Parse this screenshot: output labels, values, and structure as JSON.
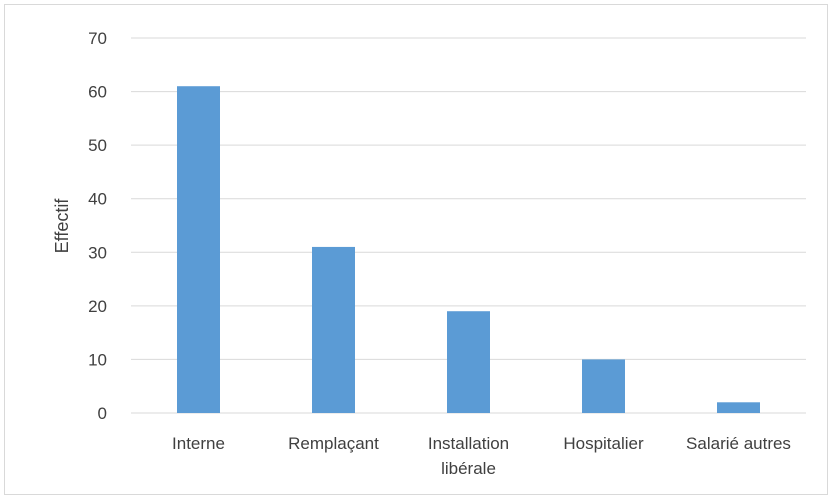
{
  "chart_data": {
    "type": "bar",
    "categories": [
      "Interne",
      "Remplaçant",
      "Installation libérale",
      "Hospitalier",
      "Salarié autres"
    ],
    "category_lines": [
      [
        "Interne"
      ],
      [
        "Remplaçant"
      ],
      [
        "Installation",
        "libérale"
      ],
      [
        "Hospitalier"
      ],
      [
        "Salarié autres"
      ]
    ],
    "values": [
      61,
      31,
      19,
      10,
      2
    ],
    "title": "",
    "xlabel": "",
    "ylabel": "Effectif",
    "ylim": [
      0,
      70
    ],
    "yticks": [
      0,
      10,
      20,
      30,
      40,
      50,
      60,
      70
    ],
    "grid": true,
    "legend": "none",
    "colors": {
      "bar": "#5b9bd5",
      "grid": "#d9d9d9",
      "text": "#404040"
    }
  }
}
